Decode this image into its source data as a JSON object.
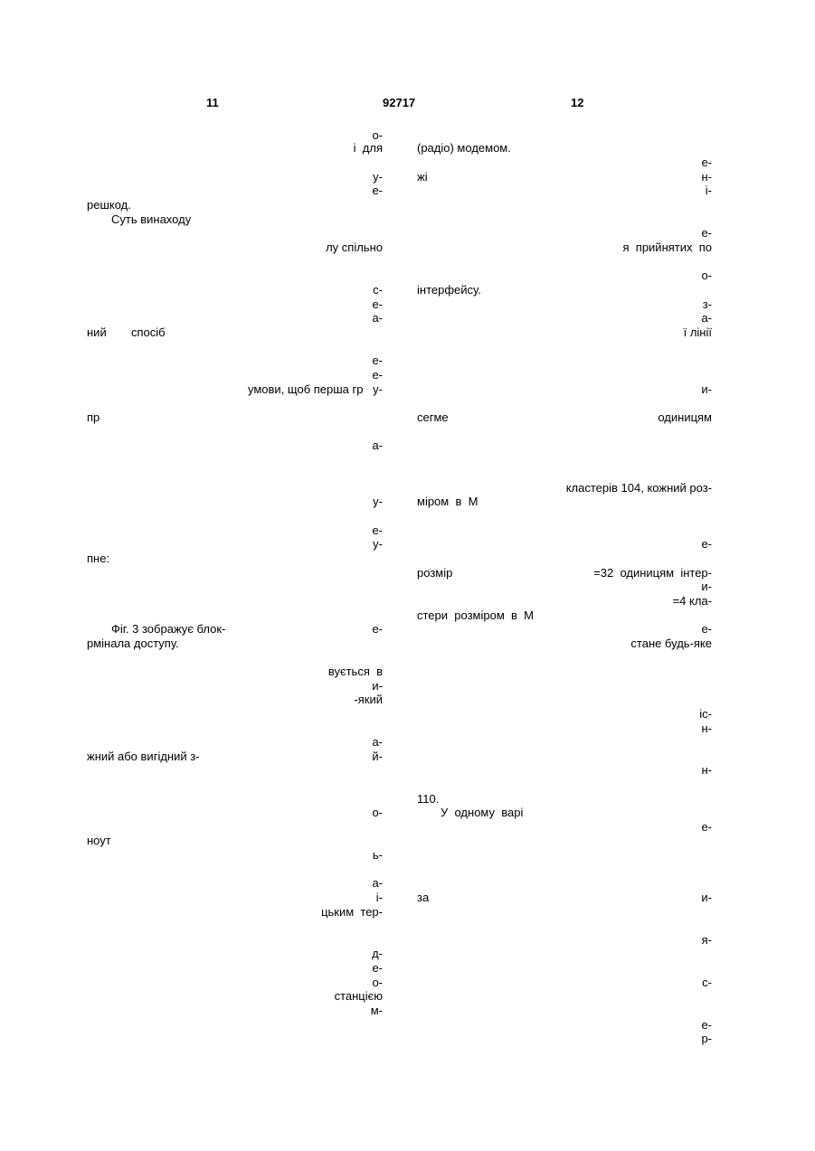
{
  "header": {
    "left_page": "11",
    "patent_number": "92717",
    "right_page": "12"
  },
  "left_column": {
    "l01": "о-",
    "l02": "і  для",
    "l03": "у-",
    "l04": "е-",
    "l05": "решкод.",
    "l06": "Суть винаходу",
    "l07": "лу спільно",
    "l08": "с-",
    "l09": "е-",
    "l10": "а-",
    "l11a": "ний",
    "l11b": "спосіб",
    "l12": "е-",
    "l13": "е-",
    "l14": "умови, щоб перша гр",
    "l14b": "у-",
    "l15": "пр",
    "l16": "а-",
    "l17": "у-",
    "l18": "е-",
    "l19": "у-",
    "l20": "пне:",
    "l21": "Фіг. 3 зображує блок-",
    "l21b": "е-",
    "l22": "рмінала доступу.",
    "l23": "вується  в",
    "l24": "и-",
    "l25": "-який",
    "l26": "а-",
    "l27": "жний або вигідний з-",
    "l27b": "й-",
    "l28": "о-",
    "l29": "ноут",
    "l30": "ь-",
    "l31": "а-",
    "l32": "і-",
    "l33": "цьким  тер-",
    "l34": "д-",
    "l35": "е-",
    "l36": "о-",
    "l37": "станцією",
    "l38": "м-"
  },
  "right_column": {
    "r01": "(радіо) модемом.",
    "r02": "е-",
    "r03a": "жі",
    "r03b": "н-",
    "r04": "і-",
    "r05": "е-",
    "r06": "я  прийнятих  по",
    "r07": "о-",
    "r08": "інтерфейсу.",
    "r09": "з-",
    "r10": "а-",
    "r11": "ї лінії",
    "r12": "и-",
    "r13a": "сегме",
    "r13b": "одиницям",
    "r14": "кластерів 104, кожний роз-",
    "r15": "міром  в  М",
    "r16": "е-",
    "r17a": "розмір",
    "r17b": "=32  одиницям  інтер-",
    "r18": "и-",
    "r19": "=4 кла-",
    "r20": "стери  розміром  в  М",
    "r21": "е-",
    "r22": "стане будь-яке",
    "r23": "іс-",
    "r24": "н-",
    "r25": "н-",
    "r26": "110.",
    "r27": "У  одному  варі",
    "r28": "е-",
    "r29a": "за",
    "r29b": "и-",
    "r30": "я-",
    "r31": "с-",
    "r32": "е-",
    "r33": "р-"
  }
}
